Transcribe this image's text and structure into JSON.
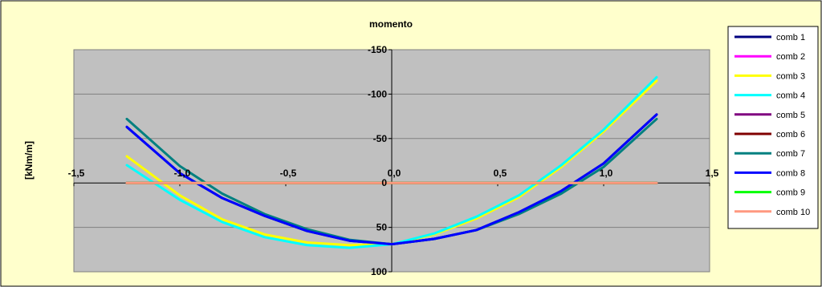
{
  "chart_data": {
    "type": "line",
    "title": "momento",
    "xlabel": "",
    "ylabel": "[kNm/m]",
    "xlim": [
      -1.5,
      1.5
    ],
    "ylim": [
      100,
      -150
    ],
    "x_ticks": [
      -1.5,
      -1.0,
      -0.5,
      0.0,
      0.5,
      1.0,
      1.5
    ],
    "x_tick_labels": [
      "-1,5",
      "-1,0",
      "-0,5",
      "0,0",
      "0,5",
      "1,0",
      "1,5"
    ],
    "y_ticks": [
      -150,
      -100,
      -50,
      0,
      50,
      100
    ],
    "y_tick_labels": [
      "-150",
      "-100",
      "-50",
      "0",
      "50",
      "100"
    ],
    "grid": true,
    "legend_position": "right",
    "plot_background": "#c0c0c0",
    "chart_background": "#ffffcc",
    "series": [
      {
        "name": "comb 1",
        "color": "#000080",
        "x": [
          -1.25,
          -1.0,
          -0.8,
          -0.6,
          -0.4,
          -0.2,
          0.0,
          0.2,
          0.4,
          0.6,
          0.8,
          1.0,
          1.25
        ],
        "y": [
          -63,
          -11,
          17,
          37,
          54,
          65,
          69,
          63,
          53,
          33,
          9,
          -22,
          -77
        ]
      },
      {
        "name": "comb 2",
        "color": "#ff00ff",
        "x": [
          -1.25,
          1.25
        ],
        "y": [
          0,
          0
        ]
      },
      {
        "name": "comb 3",
        "color": "#ffff00",
        "x": [
          -1.25,
          -1.0,
          -0.8,
          -0.6,
          -0.4,
          -0.2,
          0.0,
          0.2,
          0.4,
          0.6,
          0.8,
          1.0,
          1.25
        ],
        "y": [
          -30,
          14,
          41,
          58,
          67,
          70,
          69,
          58,
          40,
          16,
          -18,
          -58,
          -115
        ]
      },
      {
        "name": "comb 4",
        "color": "#00ffff",
        "x": [
          -1.25,
          -1.0,
          -0.8,
          -0.6,
          -0.4,
          -0.2,
          0.0,
          0.2,
          0.4,
          0.6,
          0.8,
          1.0,
          1.25
        ],
        "y": [
          -20,
          19,
          44,
          61,
          70,
          73,
          69,
          57,
          38,
          14,
          -20,
          -60,
          -119
        ]
      },
      {
        "name": "comb 5",
        "color": "#800080",
        "x": [
          -1.25,
          1.25
        ],
        "y": [
          0,
          0
        ]
      },
      {
        "name": "comb 6",
        "color": "#800000",
        "x": [
          -1.25,
          1.25
        ],
        "y": [
          0,
          0
        ]
      },
      {
        "name": "comb 7",
        "color": "#008080",
        "x": [
          -1.25,
          -1.0,
          -0.8,
          -0.6,
          -0.4,
          -0.2,
          0.0,
          0.2,
          0.4,
          0.6,
          0.8,
          1.0,
          1.25
        ],
        "y": [
          -72,
          -19,
          12,
          35,
          52,
          64,
          69,
          63,
          53,
          35,
          12,
          -18,
          -72
        ]
      },
      {
        "name": "comb 8",
        "color": "#0000ff",
        "x": [
          -1.25,
          -1.0,
          -0.8,
          -0.6,
          -0.4,
          -0.2,
          0.0,
          0.2,
          0.4,
          0.6,
          0.8,
          1.0,
          1.25
        ],
        "y": [
          -63,
          -11,
          17,
          37,
          54,
          65,
          69,
          63,
          53,
          33,
          9,
          -22,
          -77
        ]
      },
      {
        "name": "comb 9",
        "color": "#00ff00",
        "x": [
          -1.25,
          1.25
        ],
        "y": [
          0,
          0
        ]
      },
      {
        "name": "comb 10",
        "color": "#ff9980",
        "x": [
          -1.25,
          1.25
        ],
        "y": [
          0,
          0
        ]
      }
    ]
  }
}
